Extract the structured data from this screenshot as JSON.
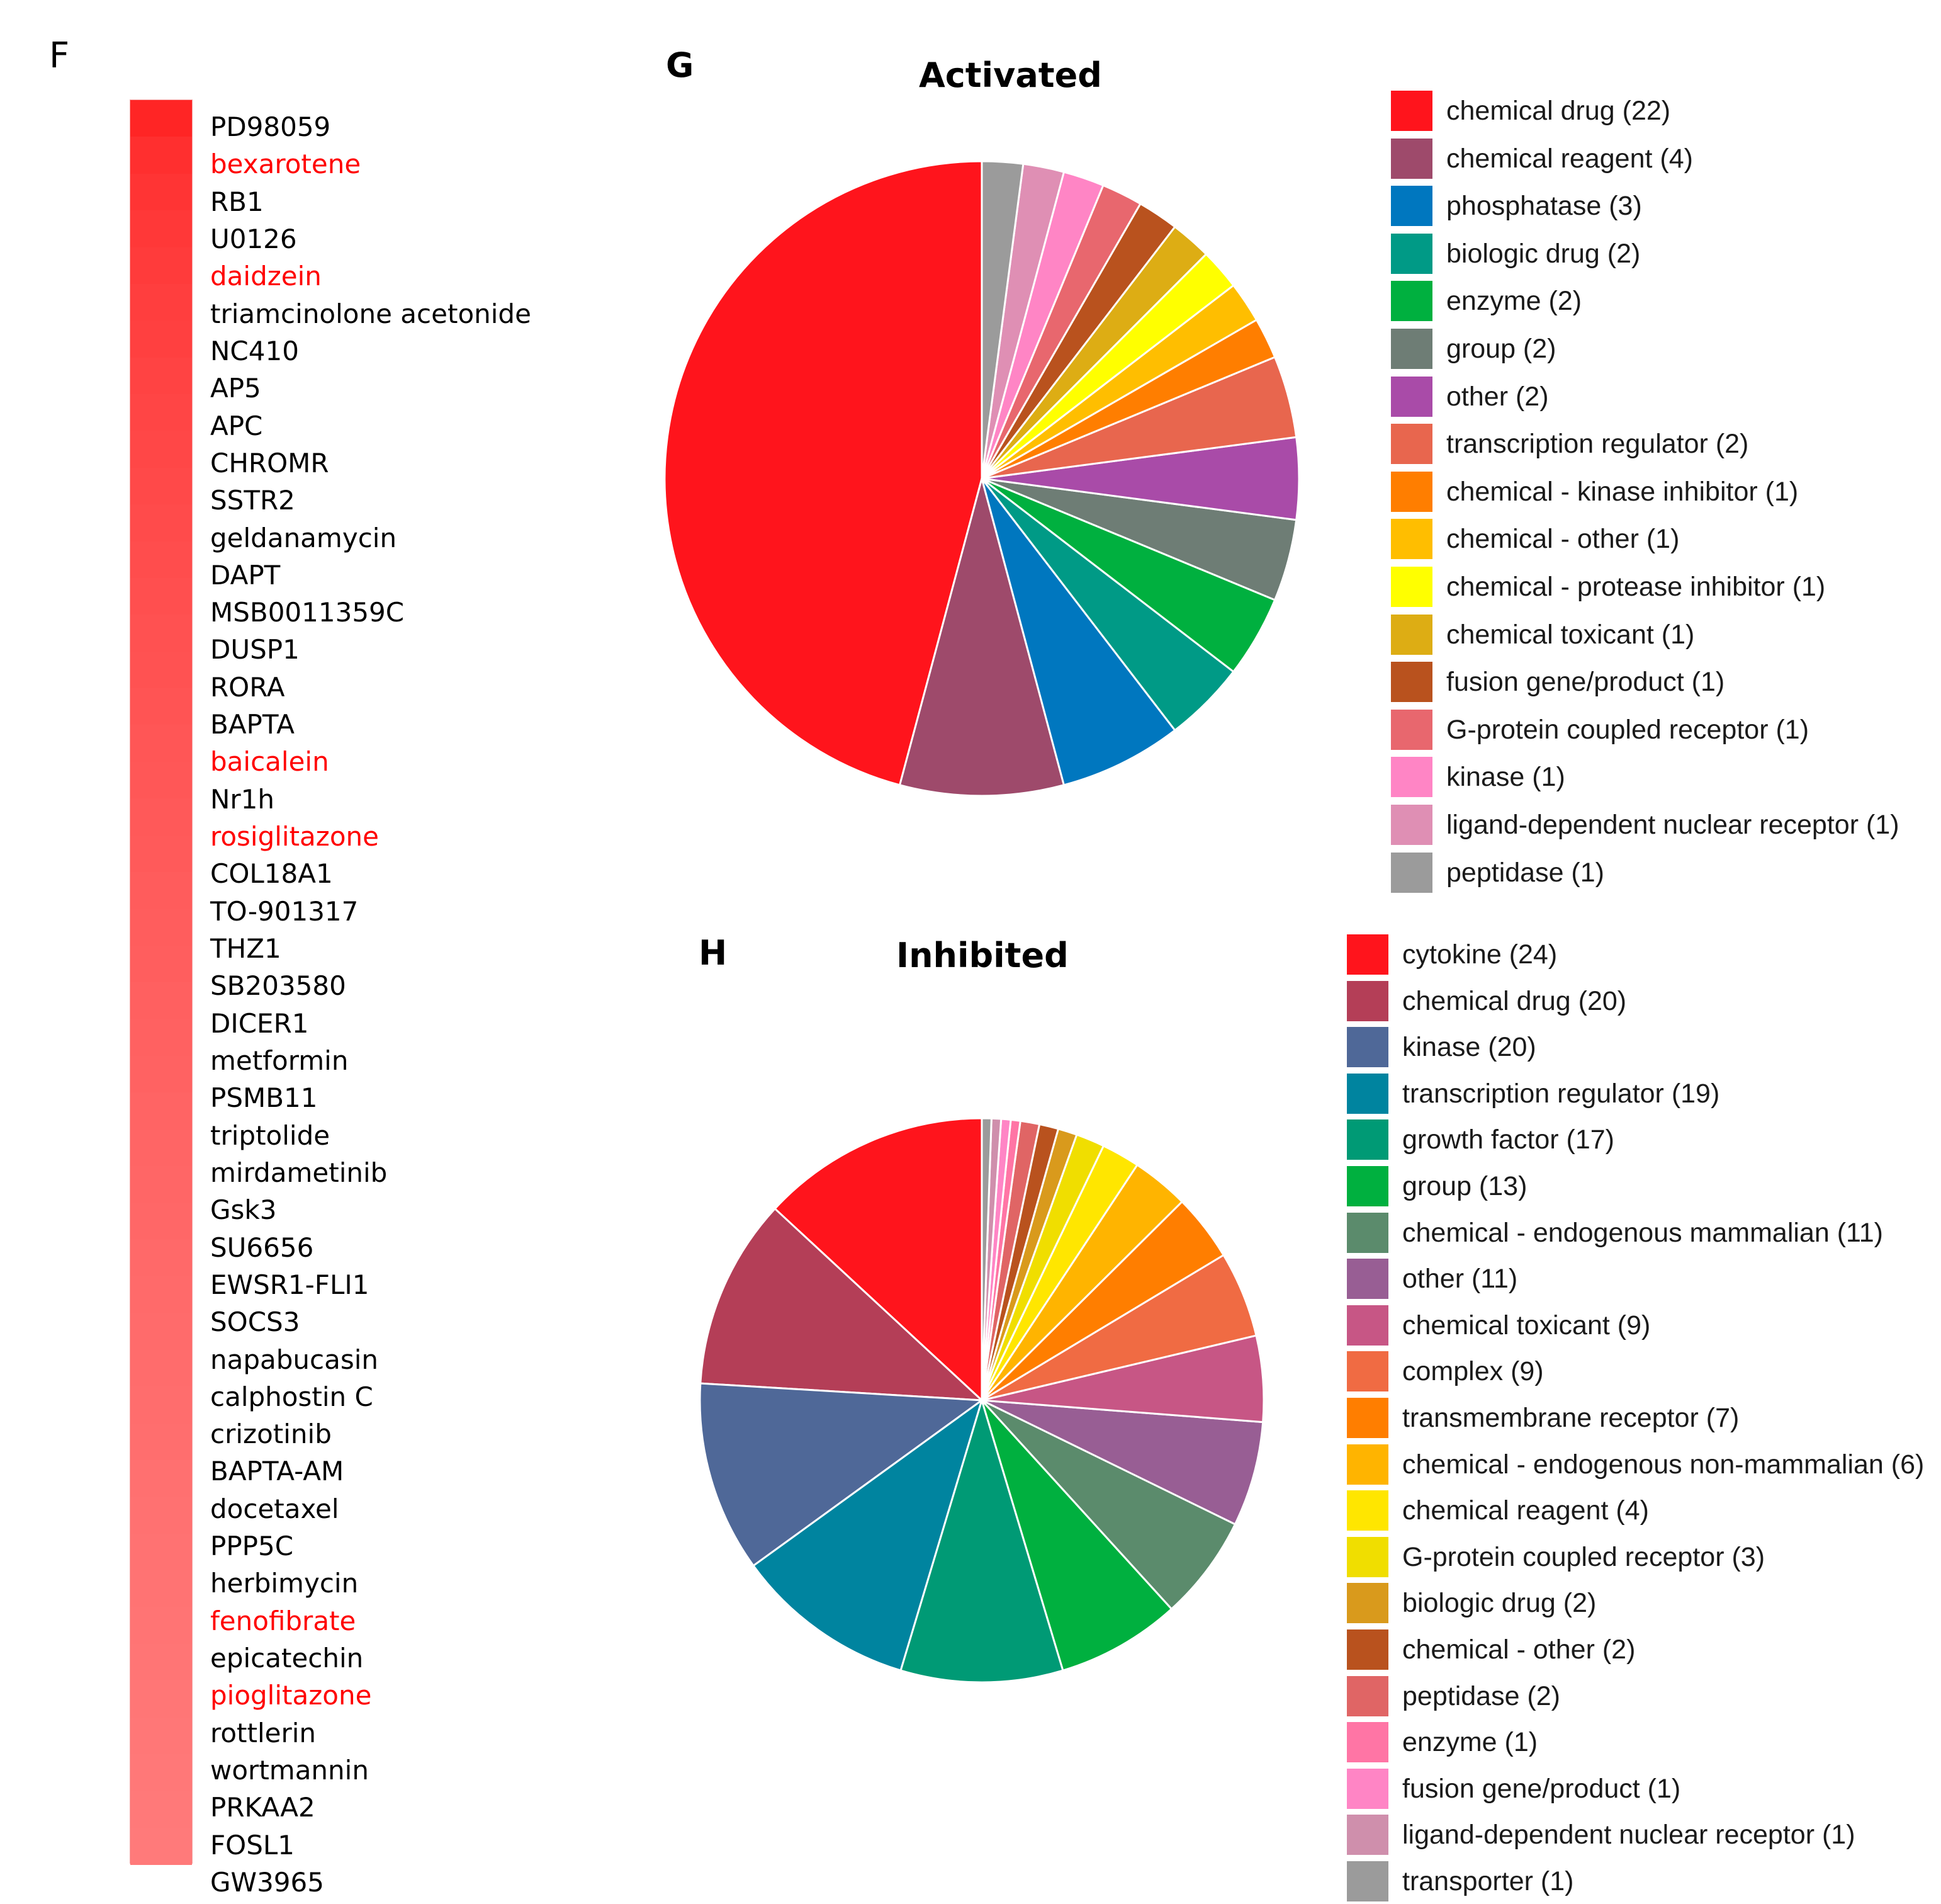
{
  "panels": {
    "f": {
      "letter": "F"
    },
    "g": {
      "letter": "G"
    },
    "h": {
      "letter": "H"
    }
  },
  "heatmap": {
    "highlight_color": "#ff0000",
    "gradient_top": "#ff2525",
    "gradient_bottom": "#ff7a7a",
    "items": [
      {
        "label": "PD98059",
        "highlight": false
      },
      {
        "label": "bexarotene",
        "highlight": true
      },
      {
        "label": "RB1",
        "highlight": false
      },
      {
        "label": "U0126",
        "highlight": false
      },
      {
        "label": "daidzein",
        "highlight": true
      },
      {
        "label": "triamcinolone acetonide",
        "highlight": false
      },
      {
        "label": "NC410",
        "highlight": false
      },
      {
        "label": "AP5",
        "highlight": false
      },
      {
        "label": "APC",
        "highlight": false
      },
      {
        "label": "CHROMR",
        "highlight": false
      },
      {
        "label": "SSTR2",
        "highlight": false
      },
      {
        "label": "geldanamycin",
        "highlight": false
      },
      {
        "label": "DAPT",
        "highlight": false
      },
      {
        "label": "MSB0011359C",
        "highlight": false
      },
      {
        "label": "DUSP1",
        "highlight": false
      },
      {
        "label": "RORA",
        "highlight": false
      },
      {
        "label": "BAPTA",
        "highlight": false
      },
      {
        "label": "baicalein",
        "highlight": true
      },
      {
        "label": "Nr1h",
        "highlight": false
      },
      {
        "label": "rosiglitazone",
        "highlight": true
      },
      {
        "label": "COL18A1",
        "highlight": false
      },
      {
        "label": "TO-901317",
        "highlight": false
      },
      {
        "label": "THZ1",
        "highlight": false
      },
      {
        "label": "SB203580",
        "highlight": false
      },
      {
        "label": "DICER1",
        "highlight": false
      },
      {
        "label": "metformin",
        "highlight": false
      },
      {
        "label": "PSMB11",
        "highlight": false
      },
      {
        "label": "triptolide",
        "highlight": false
      },
      {
        "label": "mirdametinib",
        "highlight": false
      },
      {
        "label": "Gsk3",
        "highlight": false
      },
      {
        "label": "SU6656",
        "highlight": false
      },
      {
        "label": "EWSR1-FLI1",
        "highlight": false
      },
      {
        "label": "SOCS3",
        "highlight": false
      },
      {
        "label": "napabucasin",
        "highlight": false
      },
      {
        "label": "calphostin C",
        "highlight": false
      },
      {
        "label": "crizotinib",
        "highlight": false
      },
      {
        "label": "BAPTA-AM",
        "highlight": false
      },
      {
        "label": "docetaxel",
        "highlight": false
      },
      {
        "label": "PPP5C",
        "highlight": false
      },
      {
        "label": "herbimycin",
        "highlight": false
      },
      {
        "label": "fenofibrate",
        "highlight": true
      },
      {
        "label": "epicatechin",
        "highlight": false
      },
      {
        "label": "pioglitazone",
        "highlight": true
      },
      {
        "label": "rottlerin",
        "highlight": false
      },
      {
        "label": "wortmannin",
        "highlight": false
      },
      {
        "label": "PRKAA2",
        "highlight": false
      },
      {
        "label": "FOSL1",
        "highlight": false
      },
      {
        "label": "GW3965",
        "highlight": false
      }
    ]
  },
  "chart_data": [
    {
      "type": "pie",
      "title": "Activated",
      "legend": "right",
      "slices": [
        {
          "label": "chemical drug (22)",
          "category": "chemical drug",
          "value": 22,
          "color": "#ff141c"
        },
        {
          "label": "chemical reagent (4)",
          "category": "chemical reagent",
          "value": 4,
          "color": "#9e4a6b"
        },
        {
          "label": "phosphatase (3)",
          "category": "phosphatase",
          "value": 3,
          "color": "#0077bf"
        },
        {
          "label": "biologic drug (2)",
          "category": "biologic drug",
          "value": 2,
          "color": "#009a86"
        },
        {
          "label": "enzyme (2)",
          "category": "enzyme",
          "value": 2,
          "color": "#00b03f"
        },
        {
          "label": "group (2)",
          "category": "group",
          "value": 2,
          "color": "#6e7d75"
        },
        {
          "label": "other (2)",
          "category": "other",
          "value": 2,
          "color": "#a94ba8"
        },
        {
          "label": "transcription regulator (2)",
          "category": "transcription regulator",
          "value": 2,
          "color": "#e8664e"
        },
        {
          "label": "chemical - kinase inhibitor (1)",
          "category": "chemical - kinase inhibitor",
          "value": 1,
          "color": "#ff7e00"
        },
        {
          "label": "chemical - other (1)",
          "category": "chemical - other",
          "value": 1,
          "color": "#ffbe00"
        },
        {
          "label": "chemical - protease inhibitor (1)",
          "category": "chemical - protease inhibitor",
          "value": 1,
          "color": "#ffff00"
        },
        {
          "label": "chemical toxicant (1)",
          "category": "chemical toxicant",
          "value": 1,
          "color": "#ddad14"
        },
        {
          "label": "fusion gene/product (1)",
          "category": "fusion gene/product",
          "value": 1,
          "color": "#b9521e"
        },
        {
          "label": "G-protein coupled receptor (1)",
          "category": "G-protein coupled receptor",
          "value": 1,
          "color": "#e8676e"
        },
        {
          "label": "kinase (1)",
          "category": "kinase",
          "value": 1,
          "color": "#ff85c5"
        },
        {
          "label": "ligand-dependent nuclear receptor (1)",
          "category": "ligand-dependent nuclear receptor",
          "value": 1,
          "color": "#df8fb4"
        },
        {
          "label": "peptidase (1)",
          "category": "peptidase",
          "value": 1,
          "color": "#9b9b9b"
        }
      ]
    },
    {
      "type": "pie",
      "title": "Inhibited",
      "legend": "right",
      "slices": [
        {
          "label": "cytokine (24)",
          "category": "cytokine",
          "value": 24,
          "color": "#ff141c"
        },
        {
          "label": "chemical drug (20)",
          "category": "chemical drug",
          "value": 20,
          "color": "#b43e57"
        },
        {
          "label": "kinase (20)",
          "category": "kinase",
          "value": 20,
          "color": "#4f6898"
        },
        {
          "label": "transcription regulator (19)",
          "category": "transcription regulator",
          "value": 19,
          "color": "#00849f"
        },
        {
          "label": "growth factor (17)",
          "category": "growth factor",
          "value": 17,
          "color": "#009a75"
        },
        {
          "label": "group (13)",
          "category": "group",
          "value": 13,
          "color": "#00b03f"
        },
        {
          "label": "chemical - endogenous mammalian (11)",
          "category": "chemical - endogenous mammalian",
          "value": 11,
          "color": "#5b8b6c"
        },
        {
          "label": "other (11)",
          "category": "other",
          "value": 11,
          "color": "#985e94"
        },
        {
          "label": "chemical toxicant (9)",
          "category": "chemical toxicant",
          "value": 9,
          "color": "#c75685"
        },
        {
          "label": "complex (9)",
          "category": "complex",
          "value": 9,
          "color": "#f06b43"
        },
        {
          "label": "transmembrane receptor (7)",
          "category": "transmembrane receptor",
          "value": 7,
          "color": "#ff7e00"
        },
        {
          "label": "chemical - endogenous non-mammalian (6)",
          "category": "chemical - endogenous non-mammalian",
          "value": 6,
          "color": "#ffb400"
        },
        {
          "label": "chemical reagent (4)",
          "category": "chemical reagent",
          "value": 4,
          "color": "#ffe600"
        },
        {
          "label": "G-protein coupled receptor (3)",
          "category": "G-protein coupled receptor",
          "value": 3,
          "color": "#f0de00"
        },
        {
          "label": "biologic drug (2)",
          "category": "biologic drug",
          "value": 2,
          "color": "#d99a1c"
        },
        {
          "label": "chemical - other (2)",
          "category": "chemical - other",
          "value": 2,
          "color": "#b9521e"
        },
        {
          "label": "peptidase (2)",
          "category": "peptidase",
          "value": 2,
          "color": "#e06565"
        },
        {
          "label": "enzyme (1)",
          "category": "enzyme",
          "value": 1,
          "color": "#ff75a5"
        },
        {
          "label": "fusion gene/product (1)",
          "category": "fusion gene/product",
          "value": 1,
          "color": "#ff85c5"
        },
        {
          "label": "ligand-dependent nuclear receptor (1)",
          "category": "ligand-dependent nuclear receptor",
          "value": 1,
          "color": "#cf8fac"
        },
        {
          "label": "transporter (1)",
          "category": "transporter",
          "value": 1,
          "color": "#9b9b9b"
        }
      ]
    }
  ]
}
